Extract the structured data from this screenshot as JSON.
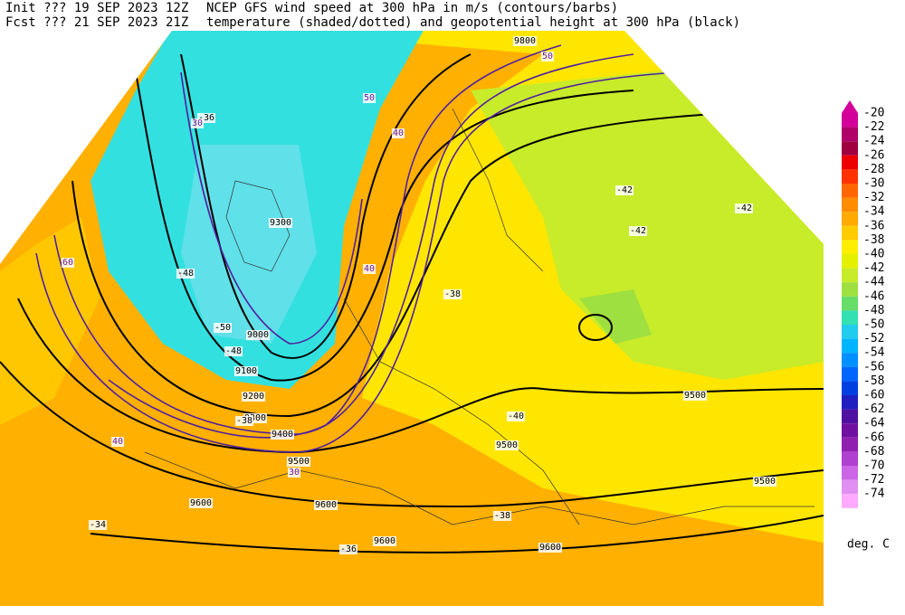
{
  "header": {
    "init": "Init  ??? 19 SEP 2023 12Z",
    "fcst": "Fcst ??? 21 SEP 2023 21Z",
    "title1": "NCEP GFS wind speed at 300 hPa in m/s (contours/barbs)",
    "title2": "temperature (shaded/dotted) and geopotential height at 300 hPa (black)"
  },
  "colorbar": {
    "labels": [
      -20,
      -22,
      -24,
      -26,
      -28,
      -30,
      -32,
      -34,
      -36,
      -38,
      -40,
      -42,
      -44,
      -46,
      -48,
      -50,
      -52,
      -54,
      -56,
      -58,
      -60,
      -62,
      -64,
      -66,
      -68,
      -70,
      -72,
      -74
    ],
    "colors": [
      "#d4009a",
      "#b0006a",
      "#a00040",
      "#ee0000",
      "#ff3300",
      "#ff6600",
      "#ff8c00",
      "#ffaa00",
      "#ffcc00",
      "#ffee00",
      "#e4f000",
      "#c8eb2a",
      "#9ee040",
      "#66dd66",
      "#33e0b0",
      "#22ccee",
      "#00b4ff",
      "#0090ff",
      "#0066ff",
      "#0040e0",
      "#2020c0",
      "#5010a0",
      "#7010a0",
      "#9020b0",
      "#b040d0",
      "#cc66e6",
      "#e090f0",
      "#ffaaff"
    ],
    "unit": "deg. C"
  },
  "map_labels": [
    "9100",
    "9200",
    "9300",
    "9400",
    "9500",
    "9500",
    "9600",
    "9600",
    "9600",
    "9500",
    "9500",
    "9600",
    "9800",
    "9000",
    "9300",
    "-38",
    "-38",
    "-40",
    "-42",
    "-42",
    "-42",
    "-36",
    "-34",
    "-36",
    "-38",
    "-48",
    "-50",
    "-48",
    "30",
    "40",
    "50",
    "60",
    "40",
    "30",
    "50",
    "40"
  ]
}
